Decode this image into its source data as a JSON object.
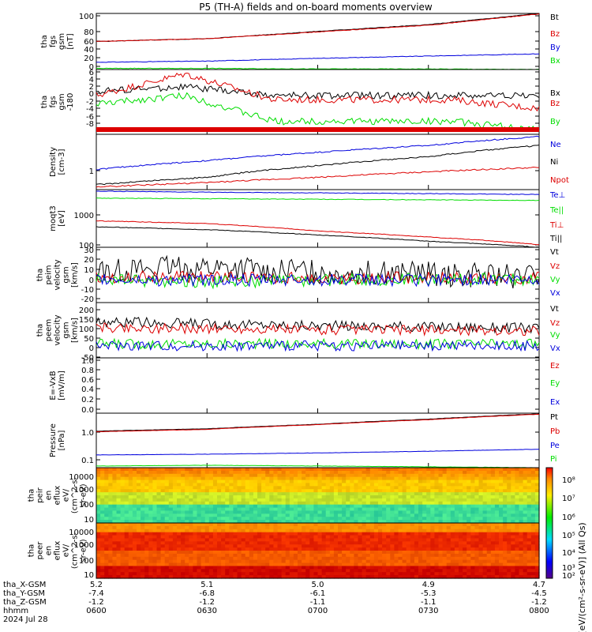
{
  "title": "P5 (TH-A) fields and on-board moments overview",
  "colors": {
    "black": "#000000",
    "red": "#dd0000",
    "green": "#00dd00",
    "blue": "#0000dd"
  },
  "chart_data": [
    {
      "type": "line",
      "panel": "fgs_gsm",
      "ylabel": [
        "tha",
        "fgs",
        "gsm",
        "[nT]"
      ],
      "yticks": [
        "100",
        "80",
        "60",
        "40",
        "20",
        "0"
      ],
      "ylim": [
        0,
        100
      ],
      "legend": [
        "Bt",
        "Bz",
        "By",
        "Bx"
      ],
      "x": [
        "0600",
        "0630",
        "0700",
        "0730",
        "0800"
      ],
      "series": [
        {
          "name": "Bt",
          "color": "black",
          "values": [
            50,
            55,
            68,
            80,
            100
          ]
        },
        {
          "name": "Bz",
          "color": "red",
          "values": [
            50,
            55,
            67,
            79,
            99
          ]
        },
        {
          "name": "By",
          "color": "blue",
          "values": [
            13,
            15,
            20,
            24,
            28
          ]
        },
        {
          "name": "Bx",
          "color": "green",
          "values": [
            2,
            2,
            1,
            1,
            0
          ]
        }
      ]
    },
    {
      "type": "line",
      "panel": "fgs_dsl",
      "ylabel": [
        "tha",
        "fgs",
        "gsm",
        "-180"
      ],
      "yticks": [
        "6",
        "4",
        "2",
        "0",
        "-2",
        "-4",
        "-6",
        "-8"
      ],
      "ylim": [
        -9,
        6
      ],
      "legend": [
        "Bx",
        "Bz",
        "By"
      ],
      "x": [
        "0600",
        "0615",
        "0630",
        "0700",
        "0730",
        "0800"
      ],
      "series": [
        {
          "name": "Bx",
          "color": "black",
          "values": [
            1,
            2,
            0,
            0,
            0,
            0
          ]
        },
        {
          "name": "Bz",
          "color": "red",
          "values": [
            0,
            5,
            -1,
            -1,
            -1,
            -3
          ]
        },
        {
          "name": "By",
          "color": "green",
          "values": [
            -2,
            0,
            -6,
            -6,
            -6,
            -8
          ]
        }
      ]
    },
    {
      "type": "line",
      "panel": "density",
      "ylabel": [
        "Density",
        "[cm-3]"
      ],
      "yticks": [
        "1"
      ],
      "ylim": [
        0.4,
        5
      ],
      "legend": [
        "Ne",
        "Ni",
        "Npot"
      ],
      "x": [
        "0600",
        "0630",
        "0700",
        "0730",
        "0800"
      ],
      "series": [
        {
          "name": "Ne",
          "color": "blue",
          "values": [
            1,
            1.5,
            2.2,
            3,
            4.5
          ]
        },
        {
          "name": "Ni",
          "color": "black",
          "values": [
            0.5,
            0.7,
            1.2,
            1.8,
            3
          ]
        },
        {
          "name": "Npot",
          "color": "red",
          "values": [
            0.45,
            0.55,
            0.7,
            0.9,
            1.1
          ]
        }
      ]
    },
    {
      "type": "line",
      "panel": "temperature",
      "ylabel": [
        "moqt3",
        "[eV]"
      ],
      "yticks": [
        "1000",
        "100"
      ],
      "ylim": [
        100,
        5000
      ],
      "legend": [
        "Te⊥",
        "Te||",
        "Ti⊥",
        "Ti||"
      ],
      "x": [
        "0600",
        "0630",
        "0700",
        "0730",
        "0800"
      ],
      "series": [
        {
          "name": "Te⊥",
          "color": "blue",
          "values": [
            4500,
            4200,
            4000,
            3800,
            3600
          ]
        },
        {
          "name": "Te||",
          "color": "green",
          "values": [
            2800,
            2700,
            2600,
            2500,
            2400
          ]
        },
        {
          "name": "Ti⊥",
          "color": "red",
          "values": [
            600,
            500,
            300,
            200,
            120
          ]
        },
        {
          "name": "Ti||",
          "color": "black",
          "values": [
            400,
            330,
            230,
            150,
            100
          ]
        }
      ]
    },
    {
      "type": "line",
      "panel": "peim_velocity",
      "ylabel": [
        "tha",
        "peim",
        "velocity",
        "gsm",
        "[km/s]"
      ],
      "yticks": [
        "30",
        "20",
        "10",
        "0",
        "-10",
        "-20"
      ],
      "ylim": [
        -22,
        32
      ],
      "legend": [
        "Vt",
        "Vz",
        "Vy",
        "Vx"
      ],
      "x": [
        "0600",
        "0630",
        "0700",
        "0730",
        "0800"
      ],
      "series": [
        {
          "name": "Vt",
          "color": "black",
          "values": [
            10,
            12,
            8,
            6,
            3
          ]
        },
        {
          "name": "Vz",
          "color": "red",
          "values": [
            3,
            3,
            2,
            2,
            2
          ]
        },
        {
          "name": "Vy",
          "color": "green",
          "values": [
            0,
            -2,
            0,
            1,
            1
          ]
        },
        {
          "name": "Vx",
          "color": "blue",
          "values": [
            0,
            0,
            0,
            0,
            0
          ]
        }
      ]
    },
    {
      "type": "line",
      "panel": "peem_velocity",
      "ylabel": [
        "tha",
        "peem",
        "velocity",
        "gsm",
        "[km/s]"
      ],
      "yticks": [
        "200",
        "150",
        "100",
        "50",
        "0",
        "-50"
      ],
      "ylim": [
        -60,
        215
      ],
      "legend": [
        "Vt",
        "Vz",
        "Vy",
        "Vx"
      ],
      "x": [
        "0600",
        "0630",
        "0700",
        "0730",
        "0800"
      ],
      "series": [
        {
          "name": "Vt",
          "color": "black",
          "values": [
            120,
            110,
            100,
            95,
            90
          ]
        },
        {
          "name": "Vz",
          "color": "red",
          "values": [
            90,
            85,
            80,
            78,
            75
          ]
        },
        {
          "name": "Vy",
          "color": "green",
          "values": [
            10,
            10,
            10,
            10,
            10
          ]
        },
        {
          "name": "Vx",
          "color": "blue",
          "values": [
            0,
            0,
            0,
            0,
            0
          ]
        }
      ]
    },
    {
      "type": "line",
      "panel": "efield",
      "ylabel": [
        "E=-VxB",
        "[mV/m]"
      ],
      "yticks": [
        "1.0",
        "0.8",
        "0.6",
        "0.4",
        "0.2",
        "0.0"
      ],
      "ylim": [
        0,
        1
      ],
      "legend": [
        "Ez",
        "Ey",
        "Ex"
      ],
      "x": [
        "0600",
        "0800"
      ],
      "series": []
    },
    {
      "type": "line",
      "panel": "pressure",
      "ylabel": [
        "Pressure",
        "[nPa]"
      ],
      "yticks": [
        "1.0",
        "0.1"
      ],
      "ylim": [
        0.08,
        4
      ],
      "legend": [
        "Pt",
        "Pb",
        "Pe",
        "Pi"
      ],
      "x": [
        "0600",
        "0630",
        "0700",
        "0730",
        "0800"
      ],
      "series": [
        {
          "name": "Pt",
          "color": "black",
          "values": [
            1.1,
            1.3,
            1.8,
            2.6,
            3.8
          ]
        },
        {
          "name": "Pb",
          "color": "red",
          "values": [
            1.05,
            1.25,
            1.75,
            2.5,
            3.7
          ]
        },
        {
          "name": "Pe",
          "color": "blue",
          "values": [
            0.2,
            0.21,
            0.23,
            0.26,
            0.3
          ]
        },
        {
          "name": "Pi",
          "color": "green",
          "values": [
            0.09,
            0.095,
            0.09,
            0.085,
            0.08
          ]
        }
      ]
    },
    {
      "type": "heatmap",
      "panel": "peir_eflux",
      "ylabel": [
        "tha",
        "peir",
        "en",
        "eflux",
        "eV/",
        "(cm^2-s-",
        "sr-eV)"
      ],
      "yticks": [
        "10000",
        "1000",
        "100",
        "10"
      ],
      "ylim": [
        5,
        25000
      ]
    },
    {
      "type": "heatmap",
      "panel": "peer_eflux",
      "ylabel": [
        "tha",
        "peer",
        "en",
        "eflux",
        "eV/",
        "(cm^2-s-",
        "sr-eV)"
      ],
      "yticks": [
        "10000",
        "1000",
        "100",
        "10"
      ],
      "ylim": [
        5,
        25000
      ]
    },
    {
      "type": "colorbar",
      "panel": "colorbar",
      "label": "[eV/(cm²-s-sr-eV)] (All Qs)",
      "ticks": [
        "10⁸",
        "10⁷",
        "10⁶",
        "10⁵",
        "10⁴",
        "10³",
        "10²"
      ]
    }
  ],
  "x_axis": {
    "rows": [
      "tha_X-GSM",
      "tha_Y-GSM",
      "tha_Z-GSM",
      "hhmm",
      "2024 Jul 28"
    ],
    "columns": [
      [
        "5.2",
        "-7.4",
        "-1.2",
        "0600"
      ],
      [
        "5.1",
        "-6.8",
        "-1.2",
        "0630"
      ],
      [
        "5.0",
        "-6.1",
        "-1.1",
        "0700"
      ],
      [
        "4.9",
        "-5.3",
        "-1.1",
        "0730"
      ],
      [
        "4.7",
        "-4.5",
        "-1.2",
        "0800"
      ]
    ]
  }
}
